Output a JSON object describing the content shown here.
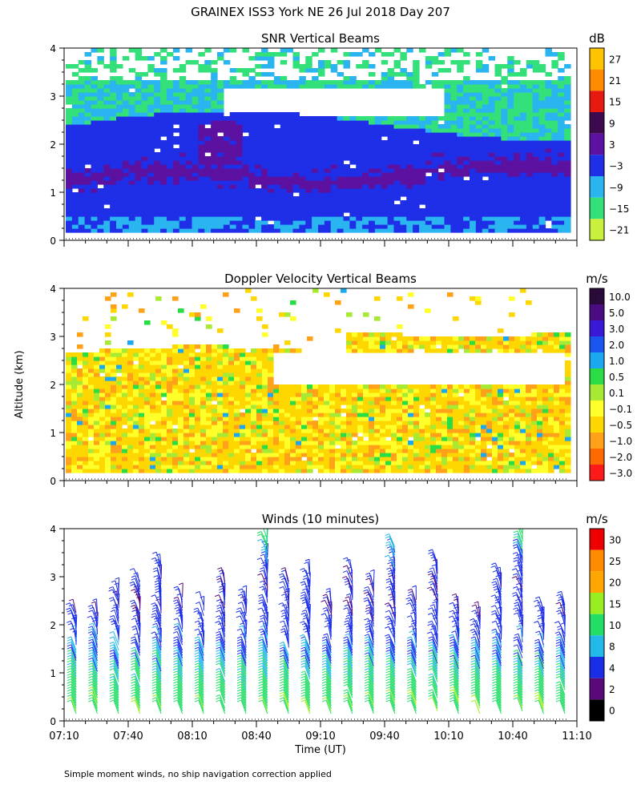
{
  "figure": {
    "title": "GRAINEX ISS3 York NE  26 Jul 2018 Day 207",
    "shared_ylabel": "Altitude (km)",
    "shared_xlabel": "Time (UT)",
    "footnote": "Simple moment winds, no ship navigation correction applied"
  },
  "chart_data": [
    {
      "type": "heatmap",
      "title": "SNR Vertical Beams",
      "ylabel": "Altitude (km)",
      "ylim": [
        0,
        4
      ],
      "y_ticks": [
        "0",
        "1",
        "2",
        "3",
        "4"
      ],
      "xlim": [
        "07:10",
        "11:10"
      ],
      "colorbar": {
        "unit": "dB",
        "labels": [
          "27",
          "21",
          "15",
          "9",
          "3",
          "−3",
          "−9",
          "−15",
          "−21"
        ],
        "colors": [
          "#ffc400",
          "#ff8c00",
          "#e8190f",
          "#3d0a4e",
          "#5c11a0",
          "#1f2fe8",
          "#2ab4f0",
          "#33e07a",
          "#c8f03c"
        ]
      },
      "layers": [
        {
          "name": "high-echo",
          "y_range": [
            2.6,
            3.3
          ],
          "level": "-15 to -9"
        },
        {
          "name": "boundary-layer",
          "y_range": [
            0.2,
            2.4
          ],
          "level": "-3 to 3"
        },
        {
          "name": "strong-band",
          "y_range": [
            0.9,
            1.5
          ],
          "level": "3 to 9"
        }
      ]
    },
    {
      "type": "heatmap",
      "title": "Doppler Velocity Vertical Beams",
      "ylabel": "Altitude (km)",
      "ylim": [
        0,
        4
      ],
      "y_ticks": [
        "0",
        "1",
        "2",
        "3",
        "4"
      ],
      "xlim": [
        "07:10",
        "11:10"
      ],
      "colorbar": {
        "unit": "m/s",
        "labels": [
          "10.0",
          "5.0",
          "3.0",
          "2.0",
          "1.0",
          "0.5",
          "0.1",
          "−0.1",
          "−0.5",
          "−1.0",
          "−2.0",
          "−3.0"
        ],
        "colors": [
          "#2a0a3a",
          "#4a0c80",
          "#3a18d8",
          "#1a55f0",
          "#1aa8f0",
          "#2add44",
          "#a8ea33",
          "#ffff2a",
          "#ffd700",
          "#ffa21a",
          "#ff6a00",
          "#ff1a1a"
        ]
      },
      "dominant_range": "-0.5 to -0.1"
    },
    {
      "type": "scatter",
      "title": "Winds (10 minutes)",
      "ylabel": "Altitude (km)",
      "xlabel": "Time (UT)",
      "ylim": [
        0,
        4
      ],
      "y_ticks": [
        "0",
        "1",
        "2",
        "3",
        "4"
      ],
      "x_ticks": [
        "07:10",
        "07:40",
        "08:10",
        "08:40",
        "09:10",
        "09:40",
        "10:10",
        "10:40",
        "11:10"
      ],
      "colorbar": {
        "unit": "m/s",
        "labels": [
          "30",
          "25",
          "20",
          "15",
          "10",
          "8",
          "4",
          "2",
          "0"
        ],
        "colors": [
          "#ee0000",
          "#ff8c00",
          "#ffa600",
          "#99ee22",
          "#22dd66",
          "#22b8e8",
          "#1a2ee8",
          "#5a0a78",
          "#000000"
        ]
      },
      "profiles_every_minutes": 10,
      "speed_by_height": [
        {
          "altitude_km": 0.3,
          "speed_ms": 14
        },
        {
          "altitude_km": 0.8,
          "speed_ms": 11
        },
        {
          "altitude_km": 1.3,
          "speed_ms": 8
        },
        {
          "altitude_km": 1.8,
          "speed_ms": 6
        },
        {
          "altitude_km": 2.3,
          "speed_ms": 5
        },
        {
          "altitude_km": 3.0,
          "speed_ms": 5
        },
        {
          "altitude_km": 3.8,
          "speed_ms": 12
        }
      ]
    }
  ]
}
